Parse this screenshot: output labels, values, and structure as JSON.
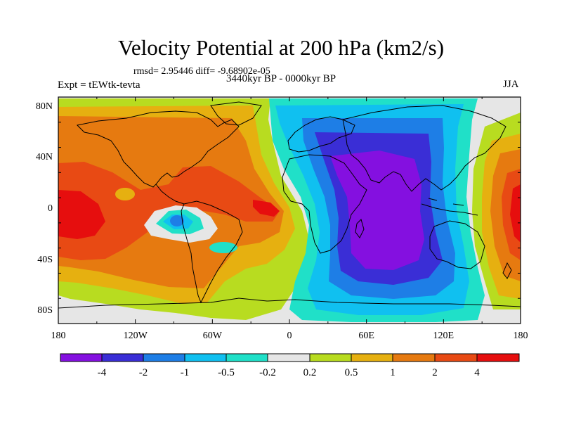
{
  "title": "Velocity Potential at 200 hPa (km2/s)",
  "stats": "rmsd= 2.95446 diff= -9.68902e-05",
  "experiment": "Expt = tEWtk-tevta",
  "period": "3440kyr BP - 0000kyr BP",
  "season": "JJA",
  "colors": {
    "ocean_bg": "#e6e6e6",
    "c_lt_m4": "#8410e0",
    "c_m4_m2": "#3a2ed6",
    "c_m2_m1": "#1e7ee6",
    "c_m1_m05": "#10c0f0",
    "c_m05_m02": "#20e0c8",
    "c_m02_02": "#e6e6e6",
    "c_02_05": "#b8dc20",
    "c_05_1": "#e6b010",
    "c_1_2": "#e67a10",
    "c_2_4": "#e84a14",
    "c_gt_4": "#e60e0e"
  },
  "map": {
    "x_ticks": [
      "180",
      "120W",
      "60W",
      "0",
      "60E",
      "120E",
      "180"
    ],
    "y_ticks": [
      "80N",
      "40N",
      "0",
      "40S",
      "80S"
    ]
  },
  "colorbar": {
    "labels": [
      "-4",
      "-2",
      "-1",
      "-0.5",
      "-0.2",
      "0.2",
      "0.5",
      "1",
      "2",
      "4"
    ]
  }
}
